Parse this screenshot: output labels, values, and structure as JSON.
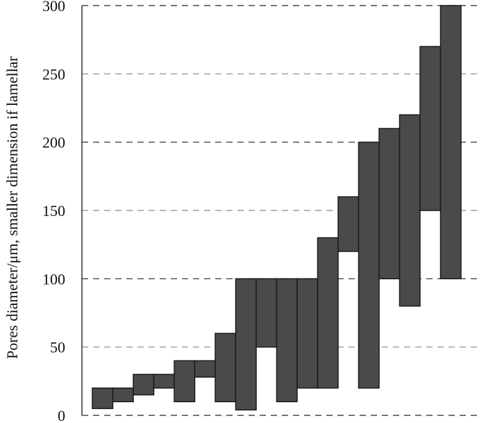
{
  "chart_data": {
    "type": "bar",
    "subtype": "floating-range",
    "ylabel": "Pores diameter/μm, smaller dimension if lamellar",
    "xlabel": "",
    "ylim": [
      0,
      300
    ],
    "yticks": [
      0,
      50,
      100,
      150,
      200,
      250,
      300
    ],
    "ytick_labels": [
      "0",
      "50",
      "100",
      "150",
      "200",
      "250",
      "300"
    ],
    "grid": "horizontal dashed",
    "ranges": [
      {
        "low": 5,
        "high": 20
      },
      {
        "low": 10,
        "high": 20
      },
      {
        "low": 15,
        "high": 30
      },
      {
        "low": 20,
        "high": 30
      },
      {
        "low": 10,
        "high": 40
      },
      {
        "low": 28,
        "high": 40
      },
      {
        "low": 10,
        "high": 60
      },
      {
        "low": 4,
        "high": 100
      },
      {
        "low": 50,
        "high": 100
      },
      {
        "low": 10,
        "high": 100
      },
      {
        "low": 20,
        "high": 100
      },
      {
        "low": 20,
        "high": 130
      },
      {
        "low": 120,
        "high": 160
      },
      {
        "low": 20,
        "high": 200
      },
      {
        "low": 100,
        "high": 210
      },
      {
        "low": 80,
        "high": 220
      },
      {
        "low": 150,
        "high": 270
      },
      {
        "low": 100,
        "high": 300
      }
    ],
    "bar_color": "#4a4a4a"
  }
}
